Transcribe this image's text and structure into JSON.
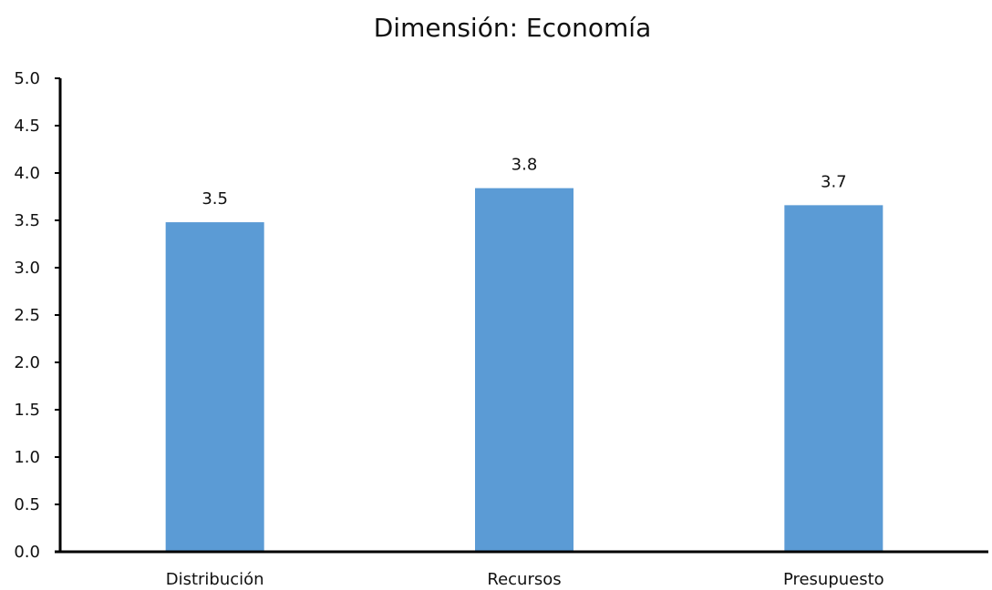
{
  "chart_data": {
    "type": "bar",
    "title": "Dimensión: Economía",
    "xlabel": "",
    "ylabel": "",
    "categories": [
      "Distribución",
      "Recursos",
      "Presupuesto"
    ],
    "values": [
      3.48,
      3.84,
      3.66
    ],
    "data_labels": [
      "3.5",
      "3.8",
      "3.7"
    ],
    "ylim": [
      0,
      5
    ],
    "yticks": [
      "0.0",
      "0.5",
      "1.0",
      "1.5",
      "2.0",
      "2.5",
      "3.0",
      "3.5",
      "4.0",
      "4.5",
      "5.0"
    ],
    "grid": false,
    "legend": "none",
    "bar_color": "#5B9BD5",
    "axis_color": "#000000"
  }
}
